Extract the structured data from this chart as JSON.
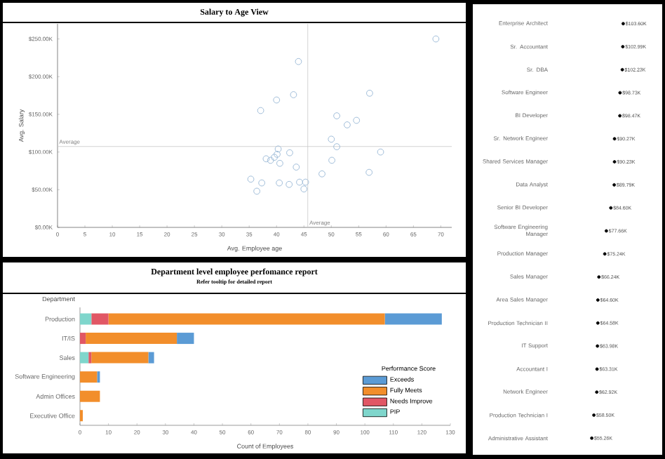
{
  "chart_data": [
    {
      "type": "scatter",
      "title": "Salary to Age View",
      "xlabel": "Avg. Employee age",
      "ylabel": "Avg. Salary",
      "color": "#9fbcd8",
      "marker": "circle",
      "x": [
        69.1,
        44.0,
        43.1,
        40.0,
        37.1,
        57.0,
        51.0,
        54.6,
        52.9,
        50.0,
        51.0,
        59.0,
        50.1,
        40.3,
        40.1,
        39.6,
        38.1,
        38.9,
        40.6,
        42.4,
        43.6,
        48.3,
        56.9,
        35.3,
        37.3,
        36.4,
        40.5,
        42.3,
        44.2,
        45.3,
        45.0
      ],
      "values": [
        250,
        220,
        176,
        169,
        155,
        178,
        148,
        142,
        136,
        117,
        107,
        100,
        89,
        104,
        97,
        93,
        91,
        89,
        85,
        99,
        80,
        71,
        73,
        64,
        59,
        48,
        59,
        57,
        60,
        60,
        51
      ],
      "xlim": [
        0,
        72
      ],
      "ylim": [
        0,
        270
      ],
      "xticks": [
        0,
        5,
        10,
        15,
        20,
        25,
        30,
        35,
        40,
        45,
        50,
        55,
        60,
        65,
        70
      ],
      "yticks": [
        {
          "value": 0,
          "label": "$0.00K"
        },
        {
          "value": 50,
          "label": "$50.00K"
        },
        {
          "value": 100,
          "label": "$100.00K"
        },
        {
          "value": 150,
          "label": "$150.00K"
        },
        {
          "value": 200,
          "label": "$200.00K"
        },
        {
          "value": 250,
          "label": "$250.00K"
        }
      ],
      "ref_lines": [
        {
          "axis": "x",
          "value": 45.7,
          "label": "Average",
          "color": "#c8c8c8"
        },
        {
          "axis": "y",
          "value": 107.3,
          "label": "Average",
          "color": "#c8c8c8"
        }
      ]
    },
    {
      "type": "bar",
      "orientation": "horizontal",
      "stacked": true,
      "title": "Department level employee perfomance report",
      "subtitle": "Refer tooltip for detailed report",
      "xlabel": "Count of Employees",
      "ylabel": "Department",
      "legend_title": "Performance Score",
      "legend": "bottom right",
      "categories": [
        "Production",
        "IT/IS",
        "Sales",
        "Software Engineering",
        "Admin Offices",
        "Executive Office"
      ],
      "xlim": [
        0,
        130
      ],
      "xticks": [
        0,
        10,
        20,
        30,
        40,
        50,
        60,
        70,
        80,
        90,
        100,
        110,
        120,
        130
      ],
      "series": [
        {
          "name": "PIP",
          "color": "#7fd6cc",
          "values": [
            4,
            0,
            3,
            0,
            0,
            0
          ]
        },
        {
          "name": "Needs Improve",
          "color": "#e15765",
          "values": [
            6,
            2,
            1,
            0,
            0,
            0
          ]
        },
        {
          "name": "Fully Meets",
          "color": "#f28e2b",
          "values": [
            97,
            32,
            20,
            6,
            7,
            1
          ]
        },
        {
          "name": "Exceeds",
          "color": "#5b9bd5",
          "values": [
            20,
            6,
            2,
            1,
            0,
            0
          ]
        }
      ]
    },
    {
      "type": "scatter",
      "orientation": "horizontal",
      "color": "#000000",
      "marker": "circle",
      "tick_labels": "y",
      "categories": [
        "Enterprise Architect",
        "Sr. Accountant",
        "Sr. DBA",
        "Software Engineer",
        "BI Developer",
        "Sr. Network Engineer",
        "Shared Services Manager",
        "Data Analyst",
        "Senior BI Developer",
        "Software Engineering Manager",
        "Production Manager",
        "Sales Manager",
        "Area Sales Manager",
        "Production Technician II",
        "IT Support",
        "Accountant I",
        "Network Engineer",
        "Production Technician I",
        "Administrative Assistant"
      ],
      "values": [
        103.6,
        102.99,
        102.23,
        98.73,
        98.47,
        90.27,
        90.23,
        89.79,
        84.6,
        77.66,
        75.24,
        66.24,
        64.6,
        64.58,
        63.98,
        63.31,
        62.92,
        58.5,
        55.26
      ],
      "value_labels": [
        "$103.60K",
        "$102.99K",
        "$102.23K",
        "$98.73K",
        "$98.47K",
        "$90.27K",
        "$90.23K",
        "$89.79K",
        "$84.60K",
        "$77.66K",
        "$75.24K",
        "$66.24K",
        "$64.60K",
        "$64.58K",
        "$63.98K",
        "$63.31K",
        "$62.92K",
        "$58.50K",
        "$55.26K"
      ]
    }
  ]
}
